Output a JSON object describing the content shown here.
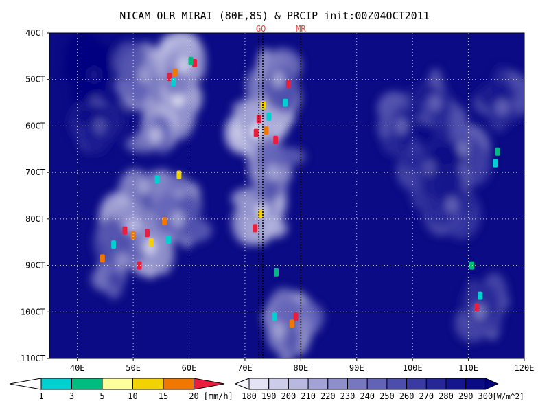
{
  "chart_data": {
    "type": "heatmap",
    "title": "NICAM OLR MIRAI (80E,8S) & PRCIP init:00Z04OCT2011",
    "x_axis": {
      "range": [
        35,
        120
      ],
      "units": "degrees east",
      "ticks": [
        {
          "value": 40,
          "label": "40E"
        },
        {
          "value": 50,
          "label": "50E"
        },
        {
          "value": 60,
          "label": "60E"
        },
        {
          "value": 70,
          "label": "70E"
        },
        {
          "value": 80,
          "label": "80E"
        },
        {
          "value": 90,
          "label": "90E"
        },
        {
          "value": 100,
          "label": "100E"
        },
        {
          "value": 110,
          "label": "110E"
        },
        {
          "value": 120,
          "label": "120E"
        }
      ]
    },
    "y_axis": {
      "range": [
        4,
        11
      ],
      "units": "day of October 2011",
      "ticks": [
        {
          "value": 4,
          "label": "4OCT"
        },
        {
          "value": 5,
          "label": "5OCT"
        },
        {
          "value": 6,
          "label": "6OCT"
        },
        {
          "value": 7,
          "label": "7OCT"
        },
        {
          "value": 8,
          "label": "8OCT"
        },
        {
          "value": 9,
          "label": "9OCT"
        },
        {
          "value": 10,
          "label": "10OCT"
        },
        {
          "value": 11,
          "label": "11OCT"
        }
      ]
    },
    "grid": true,
    "markers": [
      {
        "label": "GO",
        "lons": [
          72.5,
          73.2
        ],
        "color": "#ff3b3b"
      },
      {
        "label": "MR",
        "lons": [
          80.0
        ],
        "color": "#ff3b3b"
      }
    ],
    "precip_colorbar": {
      "unit_label": "[mm/h]",
      "levels": [
        "1",
        "3",
        "5",
        "10",
        "15",
        "20"
      ],
      "colors": [
        "#00d0d0",
        "#00bd7f",
        "#ffff9b",
        "#f2d200",
        "#f07800",
        "#ea1e3c"
      ]
    },
    "olr_colorbar": {
      "unit_label": "[W/m^2]",
      "levels": [
        "180",
        "190",
        "200",
        "210",
        "220",
        "230",
        "240",
        "250",
        "260",
        "270",
        "280",
        "290",
        "300"
      ],
      "colors": [
        "#f7f7fd",
        "#e3e3f4",
        "#cdcdea",
        "#b8b8e0",
        "#a2a2d4",
        "#8e8ecb",
        "#7777c0",
        "#6262b7",
        "#4d4dac",
        "#3a3aa2",
        "#262697",
        "#15158d",
        "#0b0b85",
        "#000080"
      ]
    },
    "convective_features": [
      {
        "lon": 43,
        "day": 4.9,
        "olr": 280
      },
      {
        "lon": 44,
        "day": 6.0,
        "olr": 250
      },
      {
        "lon": 52,
        "day": 4.9,
        "olr": 210
      },
      {
        "lon": 56,
        "day": 4.9,
        "olr": 200
      },
      {
        "lon": 58,
        "day": 5.4,
        "olr": 180
      },
      {
        "lon": 59,
        "day": 4.7,
        "olr": 190
      },
      {
        "lon": 54,
        "day": 6.2,
        "olr": 200
      },
      {
        "lon": 52,
        "day": 7.3,
        "olr": 210
      },
      {
        "lon": 58,
        "day": 7.6,
        "olr": 200
      },
      {
        "lon": 49,
        "day": 8.4,
        "olr": 190
      },
      {
        "lon": 53,
        "day": 8.6,
        "olr": 190
      },
      {
        "lon": 58,
        "day": 8.0,
        "olr": 210
      },
      {
        "lon": 48,
        "day": 8.9,
        "olr": 220
      },
      {
        "lon": 72,
        "day": 6.1,
        "olr": 180
      },
      {
        "lon": 74,
        "day": 5.4,
        "olr": 190
      },
      {
        "lon": 76,
        "day": 5.0,
        "olr": 210
      },
      {
        "lon": 73,
        "day": 7.8,
        "olr": 190
      },
      {
        "lon": 75,
        "day": 7.0,
        "olr": 210
      },
      {
        "lon": 79,
        "day": 10.1,
        "olr": 200
      },
      {
        "lon": 76,
        "day": 10.4,
        "olr": 210
      },
      {
        "lon": 98,
        "day": 6.0,
        "olr": 240
      },
      {
        "lon": 104,
        "day": 5.5,
        "olr": 240
      },
      {
        "lon": 109,
        "day": 6.5,
        "olr": 230
      },
      {
        "lon": 103,
        "day": 6.9,
        "olr": 250
      },
      {
        "lon": 107,
        "day": 7.7,
        "olr": 240
      },
      {
        "lon": 112,
        "day": 10.0,
        "olr": 230
      },
      {
        "lon": 116,
        "day": 5.6,
        "olr": 240
      }
    ],
    "precip_cells": [
      {
        "lon": 57.5,
        "day": 4.85,
        "rate": 15
      },
      {
        "lon": 61,
        "day": 4.65,
        "rate": 20
      },
      {
        "lon": 60.3,
        "day": 4.6,
        "rate": 3
      },
      {
        "lon": 56.5,
        "day": 4.95,
        "rate": 20
      },
      {
        "lon": 57.2,
        "day": 5.05,
        "rate": 1
      },
      {
        "lon": 72.5,
        "day": 5.85,
        "rate": 20
      },
      {
        "lon": 73.3,
        "day": 5.55,
        "rate": 10
      },
      {
        "lon": 72.0,
        "day": 6.15,
        "rate": 20
      },
      {
        "lon": 73.8,
        "day": 6.1,
        "rate": 15
      },
      {
        "lon": 74.3,
        "day": 5.8,
        "rate": 1
      },
      {
        "lon": 75.5,
        "day": 6.3,
        "rate": 20
      },
      {
        "lon": 77.2,
        "day": 5.5,
        "rate": 1
      },
      {
        "lon": 77.8,
        "day": 5.1,
        "rate": 20
      },
      {
        "lon": 71.8,
        "day": 8.2,
        "rate": 20
      },
      {
        "lon": 72.8,
        "day": 7.9,
        "rate": 10
      },
      {
        "lon": 48.5,
        "day": 8.25,
        "rate": 20
      },
      {
        "lon": 50.0,
        "day": 8.35,
        "rate": 15
      },
      {
        "lon": 52.5,
        "day": 8.3,
        "rate": 20
      },
      {
        "lon": 53.2,
        "day": 8.5,
        "rate": 10
      },
      {
        "lon": 46.5,
        "day": 8.55,
        "rate": 1
      },
      {
        "lon": 51.1,
        "day": 9.0,
        "rate": 20
      },
      {
        "lon": 55.6,
        "day": 8.05,
        "rate": 15
      },
      {
        "lon": 56.3,
        "day": 8.45,
        "rate": 1
      },
      {
        "lon": 44.5,
        "day": 8.85,
        "rate": 15
      },
      {
        "lon": 54.3,
        "day": 7.15,
        "rate": 1
      },
      {
        "lon": 58.2,
        "day": 7.05,
        "rate": 10
      },
      {
        "lon": 79.1,
        "day": 10.1,
        "rate": 20
      },
      {
        "lon": 78.4,
        "day": 10.25,
        "rate": 15
      },
      {
        "lon": 75.3,
        "day": 10.1,
        "rate": 1
      },
      {
        "lon": 75.6,
        "day": 9.15,
        "rate": 3
      },
      {
        "lon": 111.5,
        "day": 9.9,
        "rate": 20
      },
      {
        "lon": 112.1,
        "day": 9.65,
        "rate": 1
      },
      {
        "lon": 110.6,
        "day": 9.0,
        "rate": 3
      },
      {
        "lon": 114.8,
        "day": 6.8,
        "rate": 1
      },
      {
        "lon": 115.2,
        "day": 6.55,
        "rate": 3
      }
    ]
  }
}
